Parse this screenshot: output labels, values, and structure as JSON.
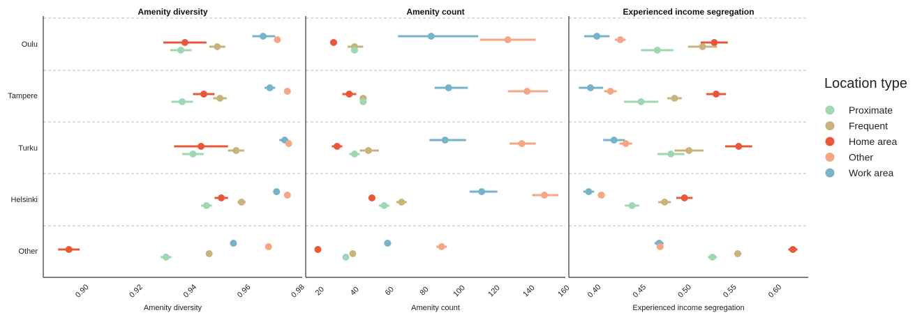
{
  "chart_data": {
    "type": "scatter",
    "categories": [
      "Oulu",
      "Tampere",
      "Turku",
      "Helsinki",
      "Other"
    ],
    "legend": {
      "title": "Location type",
      "placement": "right",
      "items": [
        {
          "name": "Proximate",
          "color": "#9dd8b1"
        },
        {
          "name": "Frequent",
          "color": "#c9b27c"
        },
        {
          "name": "Home area",
          "color": "#e85838"
        },
        {
          "name": "Other",
          "color": "#f6a585"
        },
        {
          "name": "Work area",
          "color": "#76b2c9"
        }
      ]
    },
    "series_order": [
      "Work area",
      "Other",
      "Home area",
      "Frequent",
      "Proximate"
    ],
    "grid": "horizontal dashed separators between categories",
    "panels": [
      {
        "title": "Amenity diversity",
        "xlabel": "Amenity diversity",
        "xlim": [
          0.885,
          0.981
        ],
        "xticks": [
          0.9,
          0.92,
          0.94,
          0.96,
          0.98
        ],
        "tick_labels": [
          "0.90",
          "0.92",
          "0.94",
          "0.96",
          "0.98"
        ],
        "series": [
          {
            "name": "Work area",
            "values": [
              [
                0.9665,
                0.9625,
                0.971
              ],
              [
                0.969,
                0.967,
                0.971
              ],
              [
                0.9745,
                0.9725,
                0.976
              ],
              [
                0.9715,
                0.9705,
                0.9725
              ],
              [
                0.9555,
                0.9545,
                0.9565
              ]
            ]
          },
          {
            "name": "Other",
            "values": [
              [
                0.9718,
                0.9712,
                0.9724
              ],
              [
                0.9755,
                0.9749,
                0.9761
              ],
              [
                0.976,
                0.9754,
                0.9766
              ],
              [
                0.9755,
                0.9749,
                0.9761
              ],
              [
                0.9685,
                0.9679,
                0.9691
              ]
            ]
          },
          {
            "name": "Home area",
            "values": [
              [
                0.9375,
                0.9295,
                0.9455
              ],
              [
                0.9445,
                0.9405,
                0.9485
              ],
              [
                0.9435,
                0.9335,
                0.9535
              ],
              [
                0.951,
                0.9485,
                0.9535
              ],
              [
                0.8945,
                0.8905,
                0.8985
              ]
            ]
          },
          {
            "name": "Frequent",
            "values": [
              [
                0.9495,
                0.9465,
                0.9525
              ],
              [
                0.9505,
                0.948,
                0.953
              ],
              [
                0.9565,
                0.9535,
                0.9595
              ],
              [
                0.9585,
                0.957,
                0.96
              ],
              [
                0.9465,
                0.9459,
                0.9471
              ]
            ]
          },
          {
            "name": "Proximate",
            "values": [
              [
                0.936,
                0.932,
                0.94
              ],
              [
                0.9365,
                0.9325,
                0.9405
              ],
              [
                0.9405,
                0.9365,
                0.9445
              ],
              [
                0.9455,
                0.9435,
                0.9475
              ],
              [
                0.9305,
                0.9285,
                0.9325
              ]
            ]
          }
        ]
      },
      {
        "title": "Amenity count",
        "xlabel": "Amenity count",
        "xlim": [
          11,
          160
        ],
        "xticks": [
          20,
          40,
          60,
          80,
          100,
          120,
          140,
          160
        ],
        "tick_labels": [
          "20",
          "40",
          "60",
          "80",
          "100",
          "120",
          "140",
          "160"
        ],
        "series": [
          {
            "name": "Work area",
            "values": [
              [
                83,
                64,
                110
              ],
              [
                93,
                85,
                104
              ],
              [
                91,
                82,
                103
              ],
              [
                112,
                105,
                121
              ],
              [
                58,
                56,
                60
              ]
            ]
          },
          {
            "name": "Other",
            "values": [
              [
                127,
                111,
                143
              ],
              [
                138,
                127,
                150
              ],
              [
                135,
                128,
                143
              ],
              [
                148,
                141,
                156
              ],
              [
                89,
                86,
                92
              ]
            ]
          },
          {
            "name": "Home area",
            "values": [
              [
                27,
                25,
                29
              ],
              [
                36,
                32,
                40
              ],
              [
                29,
                26,
                32
              ],
              [
                49,
                47,
                51
              ],
              [
                18,
                17,
                19
              ]
            ]
          },
          {
            "name": "Frequent",
            "values": [
              [
                39,
                35,
                44
              ],
              [
                44,
                42,
                46
              ],
              [
                47,
                42,
                53
              ],
              [
                66,
                63,
                69
              ],
              [
                38,
                37,
                39
              ]
            ]
          },
          {
            "name": "Proximate",
            "values": [
              [
                39,
                37,
                41
              ],
              [
                44,
                42,
                46
              ],
              [
                39,
                36,
                42
              ],
              [
                56,
                53,
                59
              ],
              [
                34,
                33,
                35
              ]
            ]
          }
        ]
      },
      {
        "title": "Experienced income segregation",
        "xlabel": "Experienced income segregation",
        "xlim": [
          0.37,
          0.635
        ],
        "xticks": [
          0.4,
          0.45,
          0.5,
          0.55,
          0.6
        ],
        "tick_labels": [
          "0.40",
          "0.45",
          "0.50",
          "0.55",
          "0.60"
        ],
        "series": [
          {
            "name": "Work area",
            "values": [
              [
                0.401,
                0.387,
                0.415
              ],
              [
                0.394,
                0.381,
                0.408
              ],
              [
                0.42,
                0.408,
                0.432
              ],
              [
                0.392,
                0.386,
                0.398
              ],
              [
                0.47,
                0.465,
                0.475
              ]
            ]
          },
          {
            "name": "Other",
            "values": [
              [
                0.427,
                0.421,
                0.433
              ],
              [
                0.416,
                0.409,
                0.423
              ],
              [
                0.433,
                0.426,
                0.44
              ],
              [
                0.406,
                0.402,
                0.41
              ],
              [
                0.471,
                0.469,
                0.473
              ]
            ]
          },
          {
            "name": "Home area",
            "values": [
              [
                0.531,
                0.516,
                0.546
              ],
              [
                0.533,
                0.522,
                0.544
              ],
              [
                0.558,
                0.543,
                0.573
              ],
              [
                0.498,
                0.489,
                0.507
              ],
              [
                0.618,
                0.613,
                0.623
              ]
            ]
          },
          {
            "name": "Frequent",
            "values": [
              [
                0.518,
                0.502,
                0.534
              ],
              [
                0.487,
                0.479,
                0.495
              ],
              [
                0.503,
                0.487,
                0.519
              ],
              [
                0.476,
                0.469,
                0.483
              ],
              [
                0.557,
                0.553,
                0.561
              ]
            ]
          },
          {
            "name": "Proximate",
            "values": [
              [
                0.468,
                0.45,
                0.486
              ],
              [
                0.45,
                0.431,
                0.469
              ],
              [
                0.483,
                0.468,
                0.498
              ],
              [
                0.44,
                0.432,
                0.448
              ],
              [
                0.529,
                0.524,
                0.534
              ]
            ]
          }
        ]
      }
    ]
  }
}
